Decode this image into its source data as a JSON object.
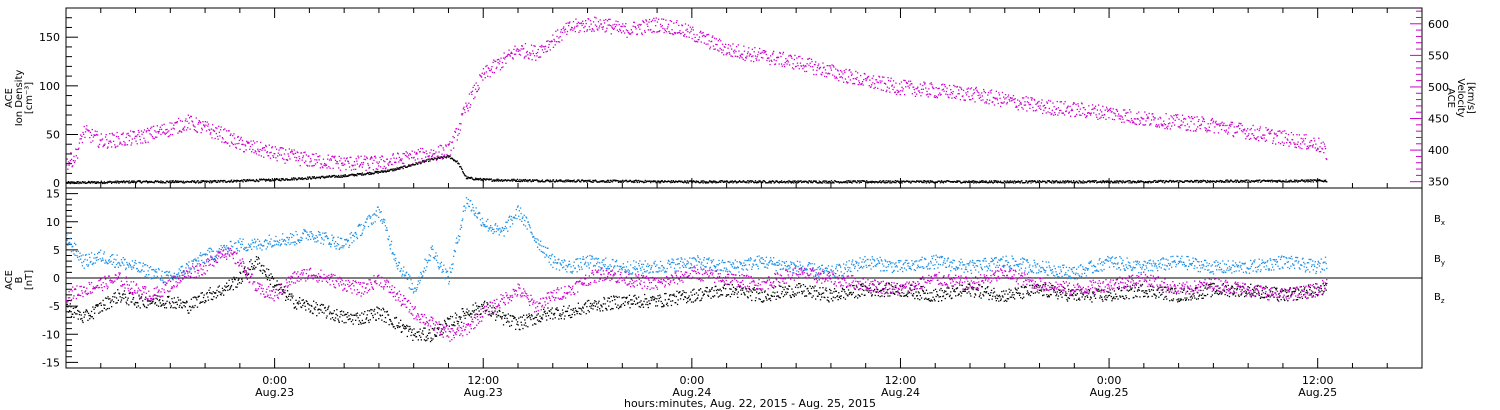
{
  "chart_data": [
    {
      "type": "scatter",
      "panel": "top",
      "left_axis_label": [
        "ACE",
        "Ion Density",
        "[cm⁻³]"
      ],
      "right_axis_label": [
        "ACE",
        "Velocity",
        "[km/s]"
      ],
      "x_range_hours": [
        0,
        78
      ],
      "y_left_range": [
        -5,
        180
      ],
      "y_right_range": [
        340,
        625
      ],
      "y_left_ticks": [
        0,
        50,
        100,
        150
      ],
      "y_right_ticks": [
        350,
        400,
        450,
        500,
        550,
        600
      ],
      "series": [
        {
          "axis": "left",
          "color": "#000000",
          "points": [
            [
              0,
              1
            ],
            [
              4,
              2
            ],
            [
              8,
              2
            ],
            [
              10,
              3
            ],
            [
              12,
              4
            ],
            [
              14,
              6
            ],
            [
              15,
              7
            ],
            [
              16,
              8
            ],
            [
              17,
              10
            ],
            [
              18,
              12
            ],
            [
              19,
              15
            ],
            [
              20,
              20
            ],
            [
              21,
              25
            ],
            [
              22,
              28
            ],
            [
              22.5,
              22
            ],
            [
              23,
              6
            ],
            [
              24,
              4
            ],
            [
              28,
              3
            ],
            [
              36,
              2
            ],
            [
              48,
              2
            ],
            [
              60,
              2
            ],
            [
              72,
              3
            ],
            [
              72.5,
              3
            ]
          ]
        },
        {
          "axis": "right",
          "color": "#cc00cc",
          "points": [
            [
              0,
              380
            ],
            [
              0.5,
              390
            ],
            [
              1,
              430
            ],
            [
              2,
              415
            ],
            [
              4,
              420
            ],
            [
              6,
              435
            ],
            [
              7,
              445
            ],
            [
              8,
              435
            ],
            [
              9,
              425
            ],
            [
              10,
              410
            ],
            [
              12,
              395
            ],
            [
              14,
              385
            ],
            [
              16,
              380
            ],
            [
              18,
              380
            ],
            [
              20,
              390
            ],
            [
              21,
              395
            ],
            [
              22,
              400
            ],
            [
              22.5,
              430
            ],
            [
              23,
              470
            ],
            [
              24,
              520
            ],
            [
              25,
              540
            ],
            [
              26,
              560
            ],
            [
              27,
              555
            ],
            [
              28,
              575
            ],
            [
              29,
              595
            ],
            [
              30,
              600
            ],
            [
              31,
              600
            ],
            [
              32,
              590
            ],
            [
              33,
              595
            ],
            [
              34,
              600
            ],
            [
              35,
              595
            ],
            [
              36,
              585
            ],
            [
              38,
              560
            ],
            [
              40,
              550
            ],
            [
              42,
              540
            ],
            [
              44,
              525
            ],
            [
              46,
              510
            ],
            [
              48,
              500
            ],
            [
              50,
              495
            ],
            [
              52,
              490
            ],
            [
              54,
              480
            ],
            [
              56,
              470
            ],
            [
              58,
              465
            ],
            [
              60,
              460
            ],
            [
              62,
              450
            ],
            [
              64,
              445
            ],
            [
              66,
              440
            ],
            [
              68,
              430
            ],
            [
              70,
              420
            ],
            [
              72,
              410
            ],
            [
              72.5,
              395
            ]
          ]
        }
      ]
    },
    {
      "type": "scatter",
      "panel": "bottom",
      "left_axis_label": [
        "ACE",
        "B",
        "[nT]"
      ],
      "x_range_hours": [
        0,
        78
      ],
      "y_range": [
        -16,
        16
      ],
      "y_ticks": [
        -15,
        -10,
        -5,
        0,
        5,
        10,
        15
      ],
      "series": [
        {
          "name": "Bx",
          "label_main": "B",
          "label_sub": "x",
          "color": "#000000",
          "points": [
            [
              0,
              -5
            ],
            [
              1,
              -7
            ],
            [
              2,
              -5
            ],
            [
              3,
              -3
            ],
            [
              4,
              -4
            ],
            [
              6,
              -4
            ],
            [
              7,
              -5
            ],
            [
              8,
              -3
            ],
            [
              9,
              -2
            ],
            [
              10,
              0
            ],
            [
              10.5,
              2
            ],
            [
              11,
              3
            ],
            [
              12,
              -1
            ],
            [
              13,
              -4
            ],
            [
              14,
              -5
            ],
            [
              15,
              -6
            ],
            [
              16,
              -7
            ],
            [
              17,
              -7
            ],
            [
              18,
              -6
            ],
            [
              19,
              -8
            ],
            [
              20,
              -10
            ],
            [
              21,
              -10
            ],
            [
              22,
              -8
            ],
            [
              23,
              -6
            ],
            [
              24,
              -5
            ],
            [
              25,
              -7
            ],
            [
              26,
              -8
            ],
            [
              27,
              -7
            ],
            [
              28,
              -6
            ],
            [
              29,
              -6
            ],
            [
              30,
              -5
            ],
            [
              32,
              -4
            ],
            [
              34,
              -4
            ],
            [
              36,
              -3
            ],
            [
              38,
              -2
            ],
            [
              40,
              -3
            ],
            [
              42,
              -2
            ],
            [
              44,
              -3
            ],
            [
              46,
              -2
            ],
            [
              48,
              -2
            ],
            [
              50,
              -3
            ],
            [
              52,
              -2
            ],
            [
              54,
              -3
            ],
            [
              56,
              -2
            ],
            [
              58,
              -3
            ],
            [
              60,
              -3
            ],
            [
              62,
              -2
            ],
            [
              64,
              -3
            ],
            [
              66,
              -2
            ],
            [
              68,
              -2
            ],
            [
              70,
              -3
            ],
            [
              72,
              -2
            ],
            [
              72.5,
              -2
            ]
          ]
        },
        {
          "name": "By",
          "label_main": "B",
          "label_sub": "y",
          "color": "#1e90e6",
          "points": [
            [
              0,
              7
            ],
            [
              1,
              3
            ],
            [
              2,
              4
            ],
            [
              3,
              3
            ],
            [
              4,
              2
            ],
            [
              5,
              1
            ],
            [
              6,
              0
            ],
            [
              7,
              2
            ],
            [
              8,
              4
            ],
            [
              9,
              5
            ],
            [
              10,
              6
            ],
            [
              11,
              6
            ],
            [
              12,
              7
            ],
            [
              13,
              7
            ],
            [
              14,
              8
            ],
            [
              15,
              7
            ],
            [
              16,
              6
            ],
            [
              17,
              9
            ],
            [
              18,
              12
            ],
            [
              19,
              3
            ],
            [
              20,
              -2
            ],
            [
              21,
              5
            ],
            [
              22,
              0
            ],
            [
              23,
              14
            ],
            [
              24,
              10
            ],
            [
              25,
              8
            ],
            [
              26,
              12
            ],
            [
              27,
              7
            ],
            [
              28,
              3
            ],
            [
              29,
              2
            ],
            [
              30,
              3
            ],
            [
              32,
              2
            ],
            [
              34,
              2
            ],
            [
              36,
              3
            ],
            [
              38,
              2
            ],
            [
              40,
              3
            ],
            [
              42,
              2
            ],
            [
              44,
              1
            ],
            [
              46,
              3
            ],
            [
              48,
              2
            ],
            [
              50,
              3
            ],
            [
              52,
              2
            ],
            [
              54,
              3
            ],
            [
              56,
              2
            ],
            [
              58,
              1
            ],
            [
              60,
              3
            ],
            [
              62,
              2
            ],
            [
              64,
              3
            ],
            [
              66,
              2
            ],
            [
              68,
              2
            ],
            [
              70,
              3
            ],
            [
              72,
              2
            ],
            [
              72.5,
              3
            ]
          ]
        },
        {
          "name": "Bz",
          "label_main": "B",
          "label_sub": "z",
          "color": "#cc00cc",
          "points": [
            [
              0,
              -3
            ],
            [
              1,
              -2
            ],
            [
              2,
              -1
            ],
            [
              3,
              0
            ],
            [
              4,
              -2
            ],
            [
              5,
              -3
            ],
            [
              6,
              -1
            ],
            [
              7,
              1
            ],
            [
              8,
              2
            ],
            [
              9,
              5
            ],
            [
              10,
              3
            ],
            [
              11,
              -2
            ],
            [
              12,
              -3
            ],
            [
              13,
              0
            ],
            [
              14,
              1
            ],
            [
              15,
              0
            ],
            [
              16,
              -1
            ],
            [
              17,
              -2
            ],
            [
              18,
              0
            ],
            [
              19,
              -3
            ],
            [
              20,
              -6
            ],
            [
              21,
              -8
            ],
            [
              22,
              -10
            ],
            [
              23,
              -9
            ],
            [
              24,
              -6
            ],
            [
              25,
              -4
            ],
            [
              26,
              -2
            ],
            [
              27,
              -5
            ],
            [
              28,
              -3
            ],
            [
              29,
              -2
            ],
            [
              30,
              0
            ],
            [
              31,
              1
            ],
            [
              32,
              0
            ],
            [
              34,
              -1
            ],
            [
              36,
              1
            ],
            [
              38,
              0
            ],
            [
              40,
              -1
            ],
            [
              42,
              1
            ],
            [
              44,
              0
            ],
            [
              46,
              -1
            ],
            [
              48,
              -2
            ],
            [
              50,
              0
            ],
            [
              52,
              -1
            ],
            [
              54,
              1
            ],
            [
              56,
              -1
            ],
            [
              58,
              -2
            ],
            [
              60,
              -1
            ],
            [
              62,
              0
            ],
            [
              64,
              -2
            ],
            [
              66,
              -1
            ],
            [
              68,
              -2
            ],
            [
              70,
              -3
            ],
            [
              72,
              -2
            ],
            [
              72.5,
              -1
            ]
          ]
        }
      ]
    }
  ],
  "x_axis": {
    "tick_labels": [
      {
        "hour": 12,
        "time": "0:00",
        "date": "Aug.23"
      },
      {
        "hour": 24,
        "time": "12:00",
        "date": "Aug.23"
      },
      {
        "hour": 36,
        "time": "0:00",
        "date": "Aug.24"
      },
      {
        "hour": 48,
        "time": "12:00",
        "date": "Aug.24"
      },
      {
        "hour": 60,
        "time": "0:00",
        "date": "Aug.25"
      },
      {
        "hour": 72,
        "time": "12:00",
        "date": "Aug.25"
      }
    ],
    "caption": "hours:minutes, Aug. 22, 2015 - Aug. 25, 2015"
  }
}
